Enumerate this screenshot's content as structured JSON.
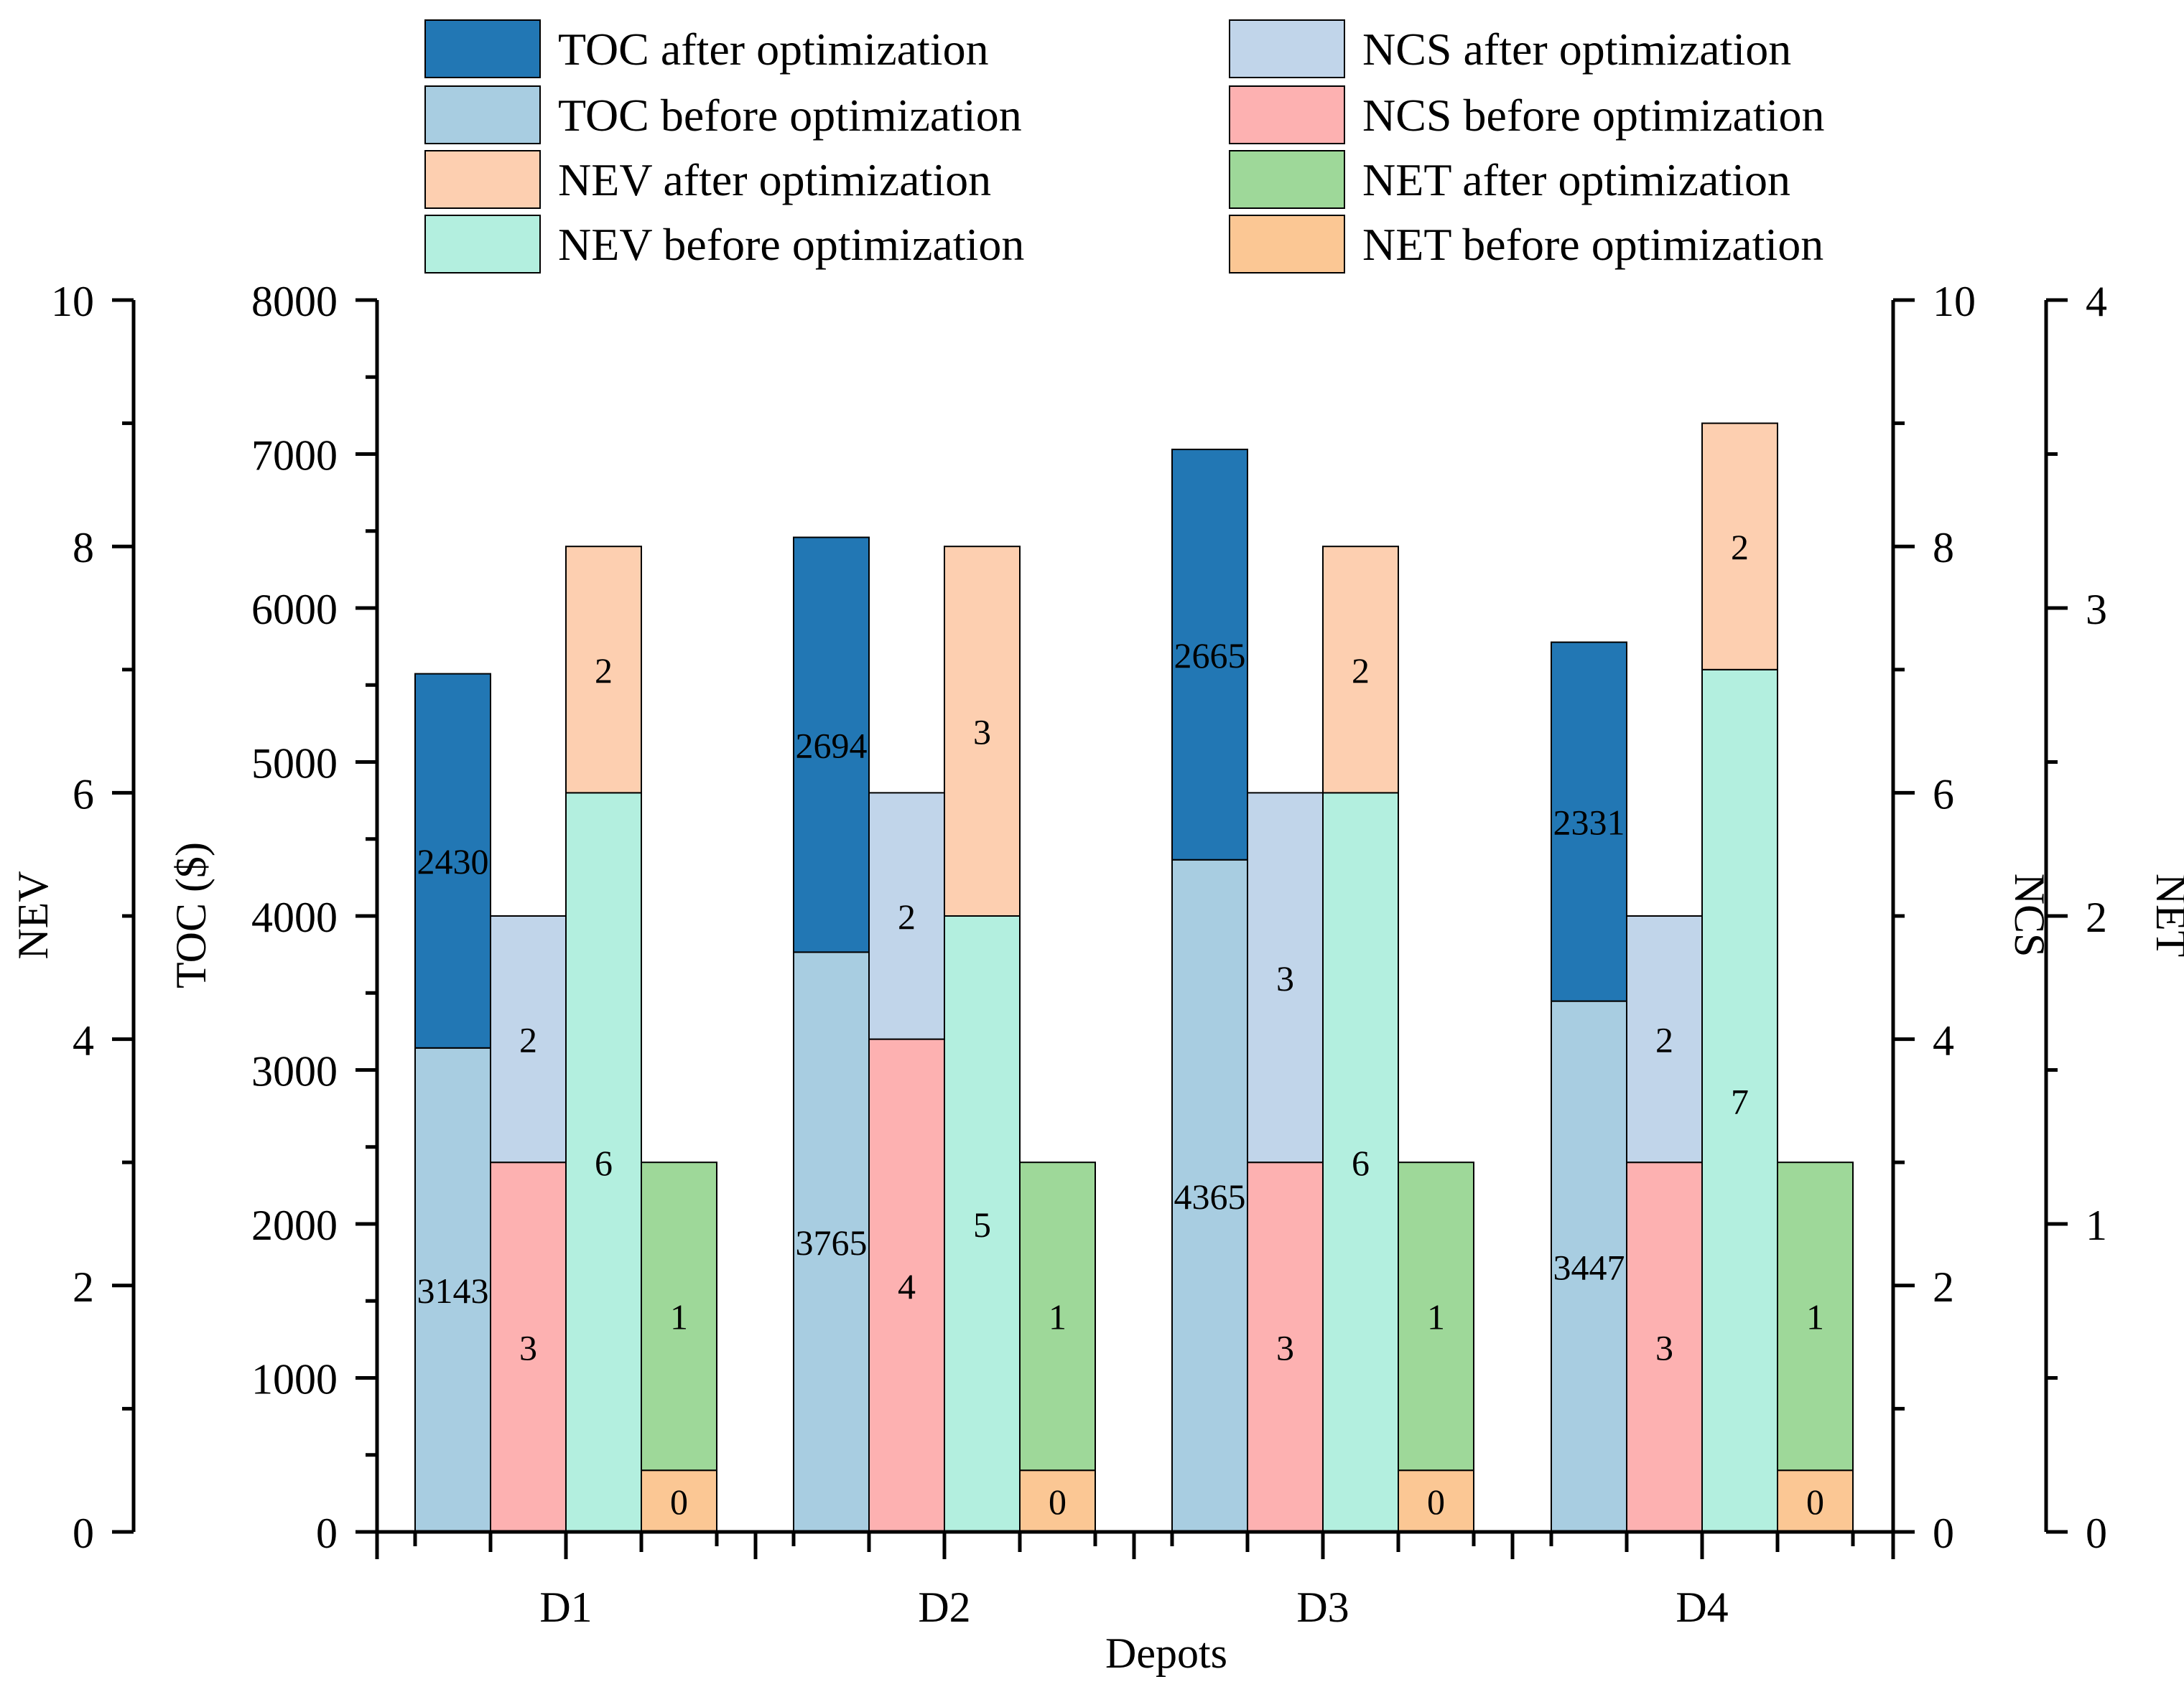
{
  "chart_data": {
    "type": "bar",
    "stacked": true,
    "xlabel": "Depots",
    "categories": [
      "D1",
      "D2",
      "D3",
      "D4"
    ],
    "axes": {
      "NEV": {
        "label": "NEV",
        "ylim": [
          0,
          10
        ],
        "ticks": [
          "0",
          "2",
          "4",
          "6",
          "8",
          "10"
        ]
      },
      "TOC": {
        "label": "TOC ($)",
        "ylim": [
          0,
          8000
        ],
        "ticks": [
          "0",
          "1000",
          "2000",
          "3000",
          "4000",
          "5000",
          "6000",
          "7000",
          "8000"
        ]
      },
      "NCS": {
        "label": "NCS",
        "ylim": [
          0,
          10
        ],
        "ticks": [
          "0",
          "2",
          "4",
          "6",
          "8",
          "10"
        ]
      },
      "NET": {
        "label": "NET",
        "ylim": [
          0,
          4
        ],
        "ticks": [
          "0",
          "1",
          "2",
          "3",
          "4"
        ]
      }
    },
    "groups": [
      {
        "metric": "TOC",
        "axis": "TOC",
        "series": [
          {
            "name": "TOC before optimization",
            "color": "#a8cde1",
            "values": [
              3143,
              3765,
              4365,
              3447
            ],
            "labels": [
              "3143",
              "3765",
              "4365",
              "3447"
            ]
          },
          {
            "name": "TOC after optimization",
            "color": "#2277b4",
            "values": [
              2430,
              2694,
              2665,
              2331
            ],
            "labels": [
              "2430",
              "2694",
              "2665",
              "2331"
            ]
          }
        ]
      },
      {
        "metric": "NCS",
        "axis": "NCS",
        "series": [
          {
            "name": "NCS before optimization",
            "color": "#fdb1b1",
            "values": [
              3,
              4,
              3,
              3
            ],
            "labels": [
              "3",
              "4",
              "3",
              "3"
            ]
          },
          {
            "name": "NCS after optimization",
            "color": "#c1d5ea",
            "values": [
              2,
              2,
              3,
              2
            ],
            "labels": [
              "2",
              "2",
              "3",
              "2"
            ]
          }
        ]
      },
      {
        "metric": "NEV",
        "axis": "NEV",
        "series": [
          {
            "name": "NEV before optimization",
            "color": "#b3efdf",
            "values": [
              6,
              5,
              6,
              7
            ],
            "labels": [
              "6",
              "5",
              "6",
              "7"
            ]
          },
          {
            "name": "NEV after optimization",
            "color": "#fdcfb0",
            "values": [
              2,
              3,
              2,
              2
            ],
            "labels": [
              "2",
              "3",
              "2",
              "2"
            ]
          }
        ]
      },
      {
        "metric": "NET",
        "axis": "NET",
        "series": [
          {
            "name": "NET before optimization",
            "color": "#fbc794",
            "values": [
              0.2,
              0.2,
              0.2,
              0.2
            ],
            "labels": [
              "0",
              "0",
              "0",
              "0"
            ]
          },
          {
            "name": "NET after optimization",
            "color": "#9ed899",
            "values": [
              1.0,
              1.0,
              1.0,
              1.0
            ],
            "labels": [
              "1",
              "1",
              "1",
              "1"
            ]
          }
        ]
      }
    ],
    "legend": {
      "placement": "top",
      "entries": [
        {
          "name": "TOC after optimization",
          "color": "#2277b4"
        },
        {
          "name": "TOC before optimization",
          "color": "#a8cde1"
        },
        {
          "name": "NEV after optimization",
          "color": "#fdcfb0"
        },
        {
          "name": "NEV before optimization",
          "color": "#b3efdf"
        },
        {
          "name": "NCS after optimization",
          "color": "#c1d5ea"
        },
        {
          "name": "NCS before optimization",
          "color": "#fdb1b1"
        },
        {
          "name": "NET after optimization",
          "color": "#9ed899"
        },
        {
          "name": "NET before optimization",
          "color": "#fbc794"
        }
      ]
    }
  }
}
